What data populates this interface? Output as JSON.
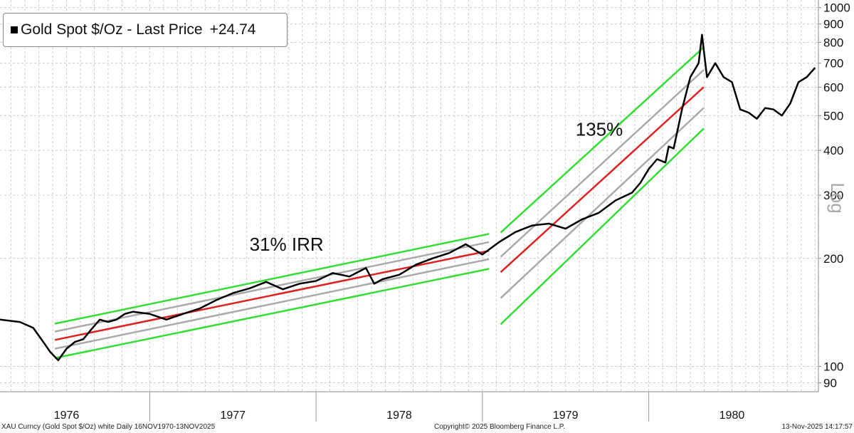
{
  "chart_data": {
    "type": "line",
    "title": "Gold Spot $/Oz",
    "legend": {
      "label": "Gold Spot $/Oz - Last Price",
      "value": "+24.74",
      "position": "top-left"
    },
    "y_scale": "log",
    "y_axis_label": "Log",
    "ylim": [
      85,
      1050
    ],
    "y_ticks": [
      {
        "value": 90,
        "label": "90"
      },
      {
        "value": 100,
        "label": "100"
      },
      {
        "value": 200,
        "label": "200"
      },
      {
        "value": 300,
        "label": "300"
      },
      {
        "value": 400,
        "label": "400"
      },
      {
        "value": 500,
        "label": "500"
      },
      {
        "value": 600,
        "label": "600"
      },
      {
        "value": 700,
        "label": "700"
      },
      {
        "value": 800,
        "label": "800"
      },
      {
        "value": 900,
        "label": "900"
      },
      {
        "value": 1000,
        "label": "1000"
      }
    ],
    "xlim": [
      1975.6,
      1980.52
    ],
    "x_ticks": [
      {
        "value": 1976.0,
        "label": "1976"
      },
      {
        "value": 1977.0,
        "label": "1977"
      },
      {
        "value": 1978.0,
        "label": "1978"
      },
      {
        "value": 1979.0,
        "label": "1979"
      },
      {
        "value": 1980.0,
        "label": "1980"
      }
    ],
    "year_separators": [
      1976.5,
      1977.5,
      1978.5,
      1979.5
    ],
    "series": [
      {
        "name": "Gold Spot $/Oz",
        "color": "#000000",
        "x": [
          1975.6,
          1975.72,
          1975.8,
          1975.86,
          1975.9,
          1975.95,
          1976.0,
          1976.05,
          1976.1,
          1976.15,
          1976.2,
          1976.25,
          1976.3,
          1976.35,
          1976.4,
          1976.5,
          1976.6,
          1976.7,
          1976.8,
          1976.9,
          1977.0,
          1977.1,
          1977.2,
          1977.3,
          1977.4,
          1977.5,
          1977.6,
          1977.7,
          1977.8,
          1977.85,
          1977.9,
          1978.0,
          1978.1,
          1978.2,
          1978.3,
          1978.4,
          1978.5,
          1978.6,
          1978.7,
          1978.8,
          1978.9,
          1979.0,
          1979.1,
          1979.2,
          1979.3,
          1979.4,
          1979.45,
          1979.5,
          1979.55,
          1979.6,
          1979.62,
          1979.65,
          1979.7,
          1979.75,
          1979.8,
          1979.82,
          1979.85,
          1979.9,
          1979.95,
          1980.0,
          1980.05,
          1980.1,
          1980.15,
          1980.2,
          1980.25,
          1980.3,
          1980.35,
          1980.4,
          1980.45,
          1980.5
        ],
        "values": [
          135,
          133,
          128,
          117,
          110,
          104,
          112,
          117,
          119,
          127,
          135,
          133,
          135,
          140,
          142,
          140,
          135,
          140,
          145,
          153,
          160,
          165,
          172,
          164,
          170,
          173,
          182,
          178,
          188,
          170,
          175,
          180,
          192,
          200,
          207,
          219,
          205,
          222,
          237,
          247,
          250,
          242,
          257,
          268,
          290,
          305,
          325,
          355,
          378,
          370,
          410,
          405,
          520,
          640,
          700,
          840,
          640,
          700,
          640,
          620,
          520,
          510,
          490,
          525,
          520,
          500,
          540,
          620,
          640,
          680
        ]
      }
    ],
    "channels": [
      {
        "name": "31% IRR channel",
        "x_start": 1975.93,
        "x_end": 1978.54,
        "lines": [
          {
            "role": "upper-bound",
            "color": "#33dd33",
            "y_start": 131.5,
            "y_end": 234
          },
          {
            "role": "upper-band",
            "color": "#aaaaaa",
            "y_start": 125,
            "y_end": 222
          },
          {
            "role": "regression",
            "color": "#dd2222",
            "y_start": 118.5,
            "y_end": 210
          },
          {
            "role": "lower-band",
            "color": "#aaaaaa",
            "y_start": 112,
            "y_end": 199
          },
          {
            "role": "lower-bound",
            "color": "#33dd33",
            "y_start": 105.5,
            "y_end": 187
          }
        ]
      },
      {
        "name": "135% channel",
        "x_start": 1978.61,
        "x_end": 1979.83,
        "lines": [
          {
            "role": "upper-bound",
            "color": "#33dd33",
            "y_start": 236,
            "y_end": 775
          },
          {
            "role": "upper-band",
            "color": "#aaaaaa",
            "y_start": 202,
            "y_end": 670
          },
          {
            "role": "regression",
            "color": "#dd2222",
            "y_start": 183,
            "y_end": 600
          },
          {
            "role": "lower-band",
            "color": "#aaaaaa",
            "y_start": 155,
            "y_end": 525
          },
          {
            "role": "lower-bound",
            "color": "#33dd33",
            "y_start": 131,
            "y_end": 460
          }
        ]
      }
    ],
    "annotations": [
      {
        "text": "31% IRR",
        "x": 1977.1,
        "y": 210
      },
      {
        "text": "135%",
        "x": 1979.06,
        "y": 440
      }
    ]
  },
  "footer": {
    "source": "XAU Curncy (Gold Spot  $/Oz) white Daily 16NOV1970-13NOV2025",
    "copyright": "Copyright© 2025 Bloomberg Finance L.P.",
    "timestamp": "13-Nov-2025 14:17:57"
  }
}
